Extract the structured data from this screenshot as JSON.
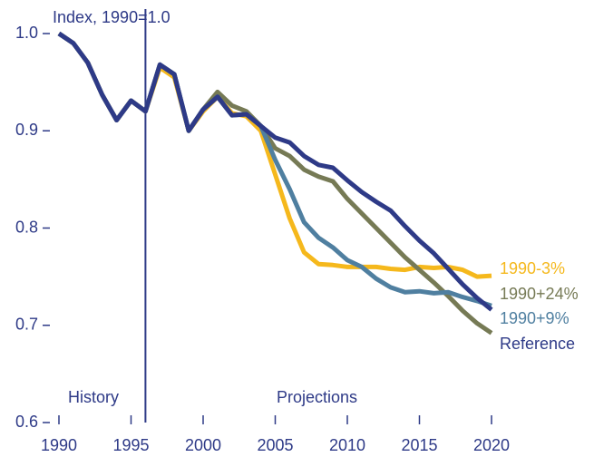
{
  "chart_data": {
    "type": "line",
    "axis_label": "Index, 1990=1.0",
    "annotations": [
      "History",
      "Projections"
    ],
    "divider_x": 1996,
    "x": [
      1990,
      1991,
      1992,
      1993,
      1994,
      1995,
      1996,
      1997,
      1998,
      1999,
      2000,
      2001,
      2002,
      2003,
      2004,
      2005,
      2006,
      2007,
      2008,
      2009,
      2010,
      2011,
      2012,
      2013,
      2014,
      2015,
      2016,
      2017,
      2018,
      2019,
      2020
    ],
    "series": [
      {
        "name": "1990-3%",
        "color": "#f5b81c",
        "values": [
          1.0,
          0.99,
          0.97,
          0.937,
          0.911,
          0.931,
          0.92,
          0.965,
          0.955,
          0.9,
          0.92,
          0.935,
          0.918,
          0.915,
          0.9,
          0.855,
          0.81,
          0.775,
          0.763,
          0.762,
          0.76,
          0.76,
          0.76,
          0.758,
          0.757,
          0.76,
          0.759,
          0.76,
          0.757,
          0.75,
          0.751
        ]
      },
      {
        "name": "Reference",
        "color": "#2e3a87",
        "values": [
          1.0,
          0.99,
          0.97,
          0.937,
          0.911,
          0.931,
          0.92,
          0.968,
          0.958,
          0.9,
          0.922,
          0.935,
          0.916,
          0.917,
          0.905,
          0.893,
          0.888,
          0.874,
          0.865,
          0.862,
          0.849,
          0.837,
          0.827,
          0.818,
          0.802,
          0.787,
          0.774,
          0.758,
          0.742,
          0.728,
          0.716
        ]
      },
      {
        "name": "1990+9%",
        "color": "#4f7fa0",
        "values": [
          1.0,
          0.99,
          0.97,
          0.937,
          0.911,
          0.931,
          0.92,
          0.968,
          0.958,
          0.9,
          0.922,
          0.935,
          0.916,
          0.917,
          0.905,
          0.87,
          0.84,
          0.806,
          0.79,
          0.78,
          0.767,
          0.76,
          0.748,
          0.739,
          0.734,
          0.735,
          0.733,
          0.734,
          0.729,
          0.725,
          0.72
        ]
      },
      {
        "name": "1990+24%",
        "color": "#767a55",
        "values": [
          1.0,
          0.99,
          0.97,
          0.937,
          0.911,
          0.931,
          0.92,
          0.968,
          0.958,
          0.9,
          0.922,
          0.94,
          0.926,
          0.92,
          0.905,
          0.882,
          0.874,
          0.86,
          0.853,
          0.848,
          0.83,
          0.815,
          0.8,
          0.785,
          0.77,
          0.757,
          0.744,
          0.73,
          0.715,
          0.702,
          0.692
        ]
      }
    ],
    "xlim": [
      1990,
      2020
    ],
    "xticks": [
      1990,
      1995,
      2000,
      2005,
      2010,
      2015,
      2020
    ],
    "ylim": [
      0.6,
      1.0
    ],
    "yticks": [
      0.6,
      0.7,
      0.8,
      0.9,
      {
        "value": 1.0,
        "label": "1.0"
      }
    ]
  }
}
